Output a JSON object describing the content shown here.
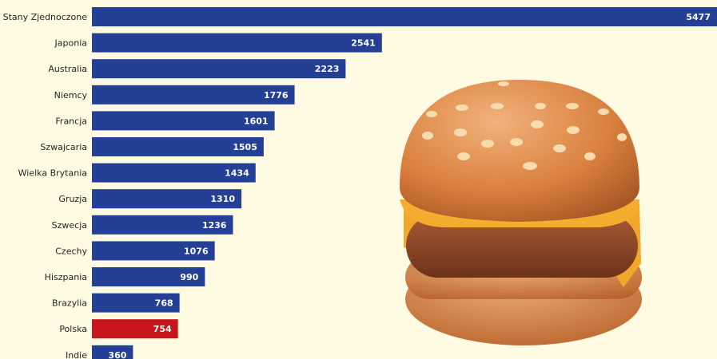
{
  "chart_data": {
    "type": "bar",
    "orientation": "horizontal",
    "categories": [
      "Stany Zjednoczone",
      "Japonia",
      "Australia",
      "Niemcy",
      "Francja",
      "Szwajcaria",
      "Wielka Brytania",
      "Gruzja",
      "Szwecja",
      "Czechy",
      "Hiszpania",
      "Brazylia",
      "Polska",
      "Indie"
    ],
    "values": [
      5477,
      2541,
      2223,
      1776,
      1601,
      1505,
      1434,
      1310,
      1236,
      1076,
      990,
      768,
      754,
      360
    ],
    "colors": [
      "#233f96",
      "#233f96",
      "#233f96",
      "#233f96",
      "#233f96",
      "#233f96",
      "#233f96",
      "#233f96",
      "#233f96",
      "#233f96",
      "#233f96",
      "#233f96",
      "#c8151b",
      "#233f96"
    ]
  }
}
